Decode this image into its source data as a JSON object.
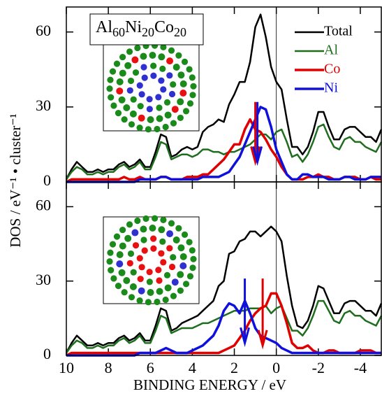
{
  "chart_data": [
    {
      "type": "line",
      "composition": {
        "elements": [
          "Al",
          "Ni",
          "Co"
        ],
        "subscripts": [
          "60",
          "20",
          "20"
        ]
      },
      "ylabel": "DOS / eV⁻¹ • cluster⁻¹",
      "x": [
        10,
        9.75,
        9.5,
        9.25,
        9,
        8.75,
        8.5,
        8.25,
        8,
        7.75,
        7.5,
        7.25,
        7,
        6.75,
        6.5,
        6.25,
        6,
        5.75,
        5.5,
        5.25,
        5,
        4.75,
        4.5,
        4.25,
        4,
        3.75,
        3.5,
        3.25,
        3,
        2.75,
        2.5,
        2.25,
        2,
        1.75,
        1.5,
        1.25,
        1,
        0.75,
        0.5,
        0.25,
        0,
        -0.25,
        -0.5,
        -0.75,
        -1,
        -1.25,
        -1.5,
        -1.75,
        -2,
        -2.25,
        -2.5,
        -2.75,
        -3,
        -3.25,
        -3.5,
        -3.75,
        -4,
        -4.25,
        -4.5,
        -4.75,
        -5
      ],
      "series": [
        {
          "name": "Total",
          "color": "#000000",
          "values": [
            1,
            5,
            8,
            6,
            4,
            4,
            5,
            4,
            5,
            5,
            7,
            8,
            6,
            7,
            9,
            6,
            6,
            12,
            19,
            18,
            10,
            11,
            13,
            14,
            13,
            14,
            20,
            22,
            23,
            25,
            24,
            31,
            35,
            40,
            40,
            48,
            62,
            67,
            58,
            46,
            40,
            37,
            25,
            14,
            14,
            11,
            14,
            20,
            28,
            28,
            22,
            17,
            17,
            21,
            22,
            22,
            20,
            18,
            18,
            16,
            21
          ]
        },
        {
          "name": "Al",
          "color": "#1e6e1e",
          "values": [
            1,
            4,
            6,
            5,
            3,
            3,
            4,
            3,
            4,
            4,
            6,
            7,
            5,
            6,
            8,
            5,
            5,
            10,
            16,
            15,
            9,
            10,
            11,
            11,
            10,
            11,
            13,
            13,
            12,
            12,
            11,
            12,
            12,
            13,
            14,
            15,
            17,
            19,
            19,
            17,
            20,
            21,
            16,
            10,
            11,
            8,
            11,
            16,
            22,
            23,
            18,
            14,
            13,
            17,
            18,
            16,
            16,
            14,
            13,
            12,
            16
          ]
        },
        {
          "name": "Co",
          "color": "#e00000",
          "values": [
            0,
            1,
            1,
            1,
            1,
            1,
            1,
            1,
            1,
            1,
            1,
            2,
            1,
            1,
            2,
            1,
            1,
            1,
            2,
            2,
            1,
            1,
            1,
            2,
            2,
            2,
            3,
            3,
            5,
            7,
            9,
            12,
            15,
            15,
            21,
            25,
            21,
            20,
            17,
            13,
            10,
            6,
            3,
            1,
            1,
            1,
            2,
            2,
            3,
            2,
            2,
            1,
            1,
            2,
            2,
            2,
            1,
            1,
            2,
            1,
            1
          ]
        },
        {
          "name": "Ni",
          "color": "#1010dd",
          "values": [
            0,
            0,
            0,
            0,
            0,
            0,
            0,
            0,
            0,
            0,
            0,
            0,
            0,
            0,
            1,
            1,
            1,
            1,
            2,
            2,
            1,
            1,
            1,
            1,
            1,
            1,
            2,
            2,
            2,
            2,
            3,
            4,
            7,
            10,
            15,
            20,
            25,
            30,
            29,
            22,
            13,
            8,
            3,
            1,
            1,
            3,
            3,
            2,
            2,
            2,
            1,
            1,
            1,
            2,
            2,
            1,
            1,
            1,
            2,
            2,
            2
          ]
        }
      ],
      "arrows": [
        {
          "x": 1.0,
          "y_start": 32,
          "y_end": 8,
          "color": "#e00000"
        },
        {
          "x": 0.9,
          "y_start": 32,
          "y_end": 8,
          "color": "#1010dd"
        }
      ],
      "xlim": [
        10,
        -5
      ],
      "ylim": [
        0,
        70
      ],
      "xticks": [
        10,
        8,
        6,
        4,
        2,
        0,
        -2,
        -4
      ],
      "yticks": [
        0,
        30,
        60
      ],
      "vline": 0,
      "legend": "upper right",
      "show_xtick_labels": false
    },
    {
      "type": "line",
      "xlabel": "BINDING ENERGY / eV",
      "x": [
        10,
        9.75,
        9.5,
        9.25,
        9,
        8.75,
        8.5,
        8.25,
        8,
        7.75,
        7.5,
        7.25,
        7,
        6.75,
        6.5,
        6.25,
        6,
        5.75,
        5.5,
        5.25,
        5,
        4.75,
        4.5,
        4.25,
        4,
        3.75,
        3.5,
        3.25,
        3,
        2.75,
        2.5,
        2.25,
        2,
        1.75,
        1.5,
        1.25,
        1,
        0.75,
        0.5,
        0.25,
        0,
        -0.25,
        -0.5,
        -0.75,
        -1,
        -1.25,
        -1.5,
        -1.75,
        -2,
        -2.25,
        -2.5,
        -2.75,
        -3,
        -3.25,
        -3.5,
        -3.75,
        -4,
        -4.25,
        -4.5,
        -4.75,
        -5
      ],
      "series": [
        {
          "name": "Total",
          "color": "#000000",
          "values": [
            1,
            5,
            8,
            6,
            4,
            4,
            5,
            4,
            5,
            5,
            7,
            8,
            6,
            7,
            9,
            6,
            6,
            12,
            19,
            18,
            10,
            11,
            13,
            14,
            15,
            16,
            18,
            20,
            22,
            28,
            30,
            41,
            42,
            46,
            47,
            50,
            50,
            48,
            50,
            52,
            50,
            46,
            32,
            20,
            12,
            11,
            14,
            20,
            28,
            27,
            22,
            17,
            17,
            21,
            22,
            22,
            20,
            18,
            18,
            16,
            21
          ]
        },
        {
          "name": "Al",
          "color": "#1e6e1e",
          "values": [
            1,
            4,
            6,
            5,
            3,
            3,
            4,
            3,
            4,
            4,
            6,
            7,
            5,
            6,
            8,
            5,
            5,
            10,
            16,
            15,
            9,
            10,
            11,
            11,
            11,
            12,
            13,
            13,
            14,
            15,
            16,
            17,
            18,
            18,
            18,
            19,
            19,
            19,
            20,
            17,
            19,
            20,
            15,
            10,
            10,
            8,
            11,
            16,
            22,
            22,
            18,
            14,
            13,
            17,
            18,
            16,
            16,
            14,
            13,
            12,
            16
          ]
        },
        {
          "name": "Co",
          "color": "#e00000",
          "values": [
            0,
            1,
            1,
            1,
            1,
            1,
            1,
            1,
            1,
            1,
            1,
            1,
            1,
            1,
            1,
            1,
            1,
            1,
            1,
            1,
            1,
            1,
            1,
            1,
            1,
            1,
            1,
            1,
            1,
            1,
            2,
            3,
            4,
            7,
            10,
            14,
            17,
            19,
            20,
            25,
            25,
            20,
            13,
            5,
            3,
            3,
            4,
            2,
            1,
            1,
            2,
            2,
            1,
            1,
            1,
            1,
            2,
            2,
            2,
            1,
            1
          ]
        },
        {
          "name": "Ni",
          "color": "#1010dd",
          "values": [
            0,
            0,
            0,
            0,
            0,
            0,
            0,
            0,
            0,
            0,
            0,
            0,
            0,
            0,
            1,
            1,
            1,
            1,
            2,
            3,
            2,
            1,
            1,
            1,
            2,
            3,
            4,
            6,
            8,
            12,
            18,
            21,
            20,
            17,
            22,
            17,
            11,
            8,
            7,
            6,
            5,
            3,
            2,
            1,
            1,
            1,
            1,
            1,
            1,
            1,
            1,
            1,
            1,
            1,
            1,
            1,
            1,
            1,
            1,
            1,
            1
          ]
        }
      ],
      "arrows": [
        {
          "x": 1.5,
          "y_start": 31,
          "y_end": 5,
          "color": "#1010dd"
        },
        {
          "x": 0.65,
          "y_start": 31,
          "y_end": 4,
          "color": "#e00000"
        }
      ],
      "xlim": [
        10,
        -5
      ],
      "ylim": [
        0,
        70
      ],
      "xticks": [
        10,
        8,
        6,
        4,
        2,
        0,
        -2,
        -4
      ],
      "yticks": [
        0,
        30,
        60
      ],
      "vline": 0,
      "show_xtick_labels": true
    }
  ]
}
